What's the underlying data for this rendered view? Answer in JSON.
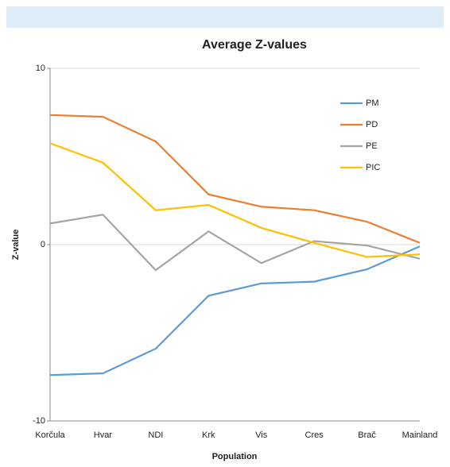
{
  "chart_data": {
    "type": "line",
    "title": "Average Z-values",
    "x_label": "Population",
    "y_label": "Z-value",
    "categories": [
      "Korčula",
      "Hvar",
      "NDI",
      "Krk",
      "Vis",
      "Cres",
      "Brač",
      "Mainland"
    ],
    "series": [
      {
        "name": "PM",
        "color": "#5b9bd5",
        "values": [
          -7.4,
          -7.3,
          -5.9,
          -2.9,
          -2.2,
          -2.1,
          -1.4,
          -0.1
        ]
      },
      {
        "name": "PD",
        "color": "#ed7d31",
        "values": [
          7.35,
          7.25,
          5.85,
          2.85,
          2.15,
          1.95,
          1.3,
          0.1
        ]
      },
      {
        "name": "PE",
        "color": "#a5a5a5",
        "values": [
          1.2,
          1.7,
          -1.45,
          0.75,
          -1.05,
          0.2,
          -0.05,
          -0.8
        ]
      },
      {
        "name": "PIC",
        "color": "#ffc000",
        "values": [
          5.75,
          4.65,
          1.95,
          2.25,
          0.95,
          0.1,
          -0.7,
          -0.55
        ]
      }
    ],
    "ylim": [
      -10,
      10
    ],
    "yticks": [
      -10,
      0,
      10
    ],
    "grid": true,
    "legend": "upper right"
  }
}
